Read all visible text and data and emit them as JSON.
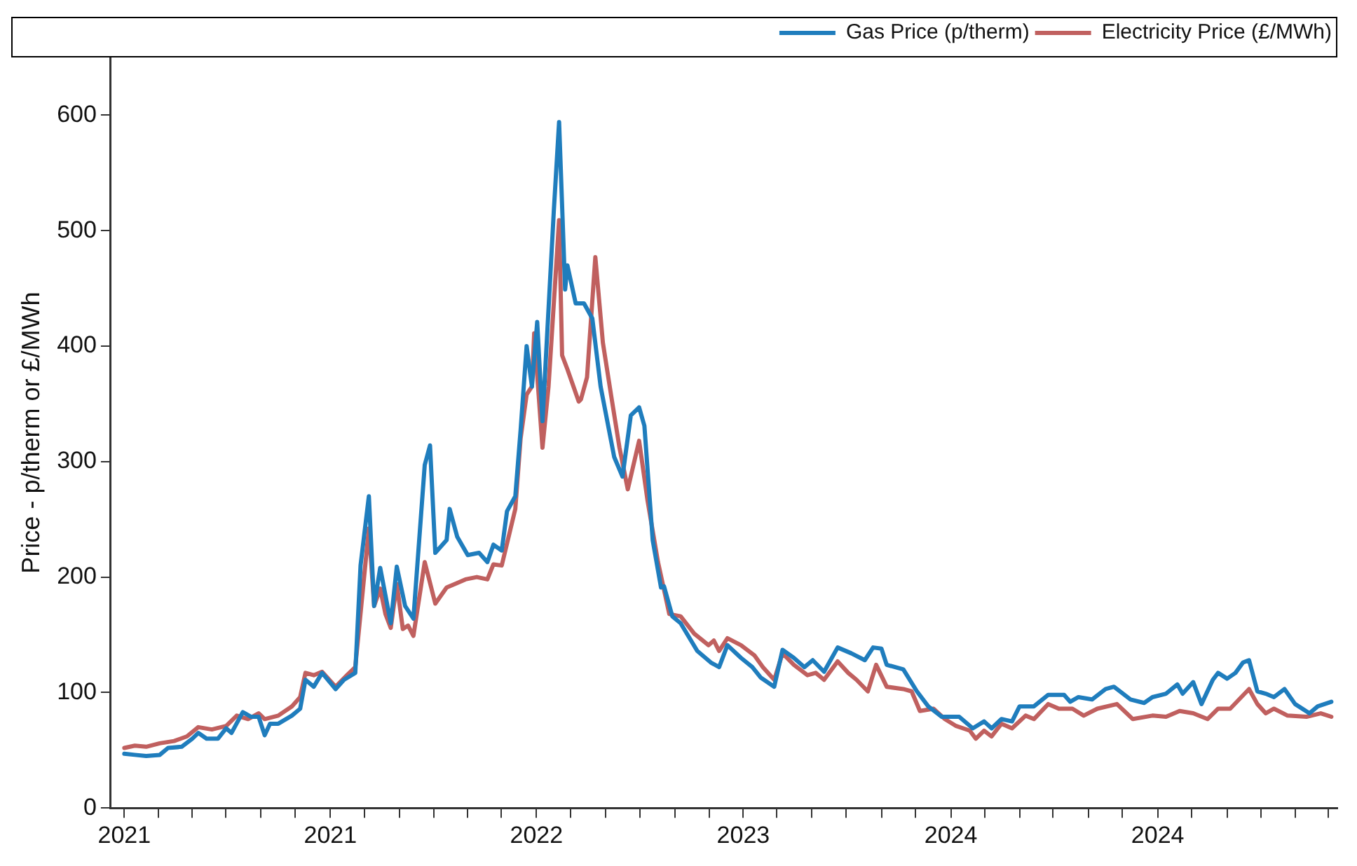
{
  "chart_data": {
    "type": "line",
    "ylabel": "Price - p/therm or £/MWh",
    "xlim": [
      "2020-12-14",
      "2025-05-27"
    ],
    "xticks": [
      {
        "value": "2021-01-01",
        "label": "2021"
      },
      {
        "value": "2021-02-15",
        "label": null
      },
      {
        "value": "2021-04-01",
        "label": null
      },
      {
        "value": "2021-05-15",
        "label": null
      },
      {
        "value": "2021-07-01",
        "label": null
      },
      {
        "value": "2021-08-15",
        "label": null
      },
      {
        "value": "2021-10-01",
        "label": "2021"
      },
      {
        "value": "2021-11-15",
        "label": null
      },
      {
        "value": "2022-01-01",
        "label": null
      },
      {
        "value": "2022-02-15",
        "label": null
      },
      {
        "value": "2022-04-01",
        "label": null
      },
      {
        "value": "2022-05-15",
        "label": null
      },
      {
        "value": "2022-07-01",
        "label": "2022"
      },
      {
        "value": "2022-08-15",
        "label": null
      },
      {
        "value": "2022-10-01",
        "label": null
      },
      {
        "value": "2022-11-15",
        "label": null
      },
      {
        "value": "2023-01-01",
        "label": null
      },
      {
        "value": "2023-02-15",
        "label": null
      },
      {
        "value": "2023-04-01",
        "label": "2023"
      },
      {
        "value": "2023-05-15",
        "label": null
      },
      {
        "value": "2023-07-01",
        "label": null
      },
      {
        "value": "2023-08-15",
        "label": null
      },
      {
        "value": "2023-10-01",
        "label": null
      },
      {
        "value": "2023-11-15",
        "label": null
      },
      {
        "value": "2024-01-01",
        "label": "2024"
      },
      {
        "value": "2024-02-15",
        "label": null
      },
      {
        "value": "2024-04-01",
        "label": null
      },
      {
        "value": "2024-05-15",
        "label": null
      },
      {
        "value": "2024-07-01",
        "label": null
      },
      {
        "value": "2024-08-15",
        "label": null
      },
      {
        "value": "2024-10-01",
        "label": "2024"
      },
      {
        "value": "2024-11-15",
        "label": null
      },
      {
        "value": "2025-01-01",
        "label": null
      },
      {
        "value": "2025-02-15",
        "label": null
      },
      {
        "value": "2025-04-01",
        "label": null
      },
      {
        "value": "2025-05-15",
        "label": null
      }
    ],
    "ylim": [
      0,
      650
    ],
    "yticks": [
      0,
      100,
      200,
      300,
      400,
      500,
      600
    ],
    "legend": "top right",
    "marker": "none",
    "series": [
      {
        "name": "Gas Price (p/therm)",
        "color": "#1f7dbd",
        "x": [
          "2021-01-01",
          "2021-01-15",
          "2021-01-30",
          "2021-02-17",
          "2021-02-28",
          "2021-03-18",
          "2021-04-01",
          "2021-04-09",
          "2021-04-20",
          "2021-05-05",
          "2021-05-16",
          "2021-05-23",
          "2021-06-07",
          "2021-06-18",
          "2021-06-28",
          "2021-07-06",
          "2021-07-13",
          "2021-07-24",
          "2021-08-11",
          "2021-08-22",
          "2021-08-29",
          "2021-09-09",
          "2021-09-20",
          "2021-10-08",
          "2021-10-19",
          "2021-11-03",
          "2021-11-10",
          "2021-11-21",
          "2021-11-28",
          "2021-12-06",
          "2021-12-20",
          "2021-12-28",
          "2022-01-08",
          "2022-01-19",
          "2022-02-03",
          "2022-02-10",
          "2022-02-17",
          "2022-03-04",
          "2022-03-08",
          "2022-03-18",
          "2022-04-01",
          "2022-04-16",
          "2022-04-27",
          "2022-05-05",
          "2022-05-16",
          "2022-05-23",
          "2022-06-03",
          "2022-06-10",
          "2022-06-18",
          "2022-06-25",
          "2022-07-02",
          "2022-07-09",
          "2022-07-24",
          "2022-07-31",
          "2022-08-08",
          "2022-08-11",
          "2022-08-22",
          "2022-09-02",
          "2022-09-13",
          "2022-09-24",
          "2022-10-12",
          "2022-10-23",
          "2022-11-03",
          "2022-11-14",
          "2022-11-21",
          "2022-12-02",
          "2022-12-13",
          "2022-12-17",
          "2022-12-28",
          "2023-01-08",
          "2023-01-30",
          "2023-02-17",
          "2023-02-28",
          "2023-03-11",
          "2023-03-29",
          "2023-04-13",
          "2023-04-24",
          "2023-05-12",
          "2023-05-23",
          "2023-06-07",
          "2023-06-21",
          "2023-07-02",
          "2023-07-17",
          "2023-08-04",
          "2023-08-22",
          "2023-09-09",
          "2023-09-20",
          "2023-10-01",
          "2023-10-08",
          "2023-10-30",
          "2023-11-17",
          "2023-12-02",
          "2023-12-20",
          "2024-01-12",
          "2024-01-30",
          "2024-02-14",
          "2024-02-24",
          "2024-03-08",
          "2024-03-22",
          "2024-04-01",
          "2024-04-20",
          "2024-05-09",
          "2024-05-30",
          "2024-06-07",
          "2024-06-18",
          "2024-07-06",
          "2024-07-24",
          "2024-08-04",
          "2024-08-26",
          "2024-09-13",
          "2024-09-24",
          "2024-10-12",
          "2024-10-27",
          "2024-11-03",
          "2024-11-17",
          "2024-11-28",
          "2024-12-13",
          "2024-12-20",
          "2025-01-01",
          "2025-01-12",
          "2025-01-22",
          "2025-01-30",
          "2025-02-10",
          "2025-02-21",
          "2025-03-04",
          "2025-03-18",
          "2025-04-01",
          "2025-04-20",
          "2025-05-01",
          "2025-05-19"
        ],
        "values": [
          47,
          46,
          45,
          46,
          52,
          53,
          60,
          65,
          60,
          60,
          69,
          65,
          83,
          79,
          79,
          63,
          73,
          73,
          80,
          86,
          111,
          105,
          117,
          103,
          111,
          117,
          210,
          270,
          175,
          208,
          160,
          209,
          175,
          164,
          297,
          314,
          221,
          232,
          259,
          235,
          219,
          221,
          213,
          228,
          223,
          257,
          270,
          327,
          400,
          365,
          421,
          335,
          517,
          594,
          449,
          470,
          437,
          437,
          424,
          365,
          304,
          287,
          340,
          347,
          331,
          232,
          191,
          192,
          166,
          160,
          136,
          126,
          122,
          141,
          130,
          122,
          113,
          105,
          137,
          130,
          122,
          128,
          118,
          139,
          134,
          128,
          139,
          138,
          124,
          120,
          101,
          88,
          79,
          79,
          69,
          75,
          69,
          77,
          75,
          88,
          88,
          98,
          98,
          92,
          96,
          94,
          103,
          105,
          94,
          91,
          96,
          99,
          107,
          99,
          109,
          90,
          111,
          117,
          112,
          117,
          126,
          128,
          101,
          99,
          96,
          103,
          90,
          82,
          88,
          92
        ]
      },
      {
        "name": "Electricity Price (£/MWh)",
        "color": "#c0605f",
        "x": [
          "2021-01-01",
          "2021-01-15",
          "2021-01-30",
          "2021-02-17",
          "2021-03-08",
          "2021-03-25",
          "2021-04-09",
          "2021-04-27",
          "2021-05-16",
          "2021-05-30",
          "2021-06-14",
          "2021-06-28",
          "2021-07-06",
          "2021-07-24",
          "2021-08-11",
          "2021-08-22",
          "2021-08-29",
          "2021-09-09",
          "2021-09-20",
          "2021-10-08",
          "2021-10-23",
          "2021-11-03",
          "2021-11-21",
          "2021-11-28",
          "2021-12-06",
          "2021-12-13",
          "2021-12-20",
          "2021-12-28",
          "2022-01-05",
          "2022-01-12",
          "2022-01-19",
          "2022-02-03",
          "2022-02-17",
          "2022-03-04",
          "2022-03-15",
          "2022-03-29",
          "2022-04-13",
          "2022-04-27",
          "2022-05-05",
          "2022-05-16",
          "2022-06-03",
          "2022-06-10",
          "2022-06-18",
          "2022-06-25",
          "2022-06-28",
          "2022-07-09",
          "2022-07-17",
          "2022-07-31",
          "2022-08-04",
          "2022-08-11",
          "2022-08-26",
          "2022-08-29",
          "2022-09-06",
          "2022-09-17",
          "2022-09-27",
          "2022-10-08",
          "2022-10-19",
          "2022-10-30",
          "2022-11-14",
          "2022-11-25",
          "2022-12-09",
          "2022-12-24",
          "2023-01-08",
          "2023-01-26",
          "2023-02-14",
          "2023-02-21",
          "2023-02-28",
          "2023-03-11",
          "2023-03-29",
          "2023-04-16",
          "2023-04-27",
          "2023-05-12",
          "2023-05-23",
          "2023-06-07",
          "2023-06-25",
          "2023-07-06",
          "2023-07-17",
          "2023-08-04",
          "2023-08-18",
          "2023-08-29",
          "2023-09-13",
          "2023-09-24",
          "2023-10-08",
          "2023-10-30",
          "2023-11-10",
          "2023-11-21",
          "2023-12-09",
          "2023-12-24",
          "2024-01-08",
          "2024-01-26",
          "2024-02-03",
          "2024-02-14",
          "2024-02-24",
          "2024-03-08",
          "2024-03-22",
          "2024-04-09",
          "2024-04-20",
          "2024-05-09",
          "2024-05-23",
          "2024-06-10",
          "2024-06-25",
          "2024-07-13",
          "2024-08-08",
          "2024-08-29",
          "2024-09-24",
          "2024-10-12",
          "2024-10-30",
          "2024-11-17",
          "2024-12-06",
          "2024-12-20",
          "2025-01-05",
          "2025-01-30",
          "2025-02-10",
          "2025-02-21",
          "2025-03-04",
          "2025-03-22",
          "2025-04-16",
          "2025-05-05",
          "2025-05-19"
        ],
        "values": [
          52,
          54,
          53,
          56,
          58,
          62,
          70,
          68,
          71,
          80,
          77,
          82,
          77,
          80,
          88,
          96,
          117,
          115,
          118,
          105,
          115,
          122,
          242,
          175,
          190,
          168,
          156,
          194,
          155,
          158,
          149,
          213,
          177,
          191,
          194,
          198,
          200,
          198,
          211,
          210,
          259,
          320,
          358,
          365,
          411,
          312,
          365,
          509,
          392,
          380,
          352,
          354,
          373,
          477,
          403,
          357,
          312,
          276,
          318,
          267,
          213,
          168,
          166,
          151,
          141,
          145,
          136,
          147,
          141,
          132,
          122,
          111,
          134,
          124,
          115,
          117,
          111,
          127,
          117,
          111,
          101,
          124,
          105,
          103,
          101,
          84,
          86,
          77,
          71,
          67,
          60,
          67,
          62,
          73,
          69,
          80,
          77,
          90,
          86,
          86,
          80,
          86,
          90,
          77,
          80,
          79,
          84,
          82,
          77,
          86,
          86,
          103,
          90,
          82,
          86,
          80,
          79,
          82,
          79
        ]
      }
    ]
  }
}
